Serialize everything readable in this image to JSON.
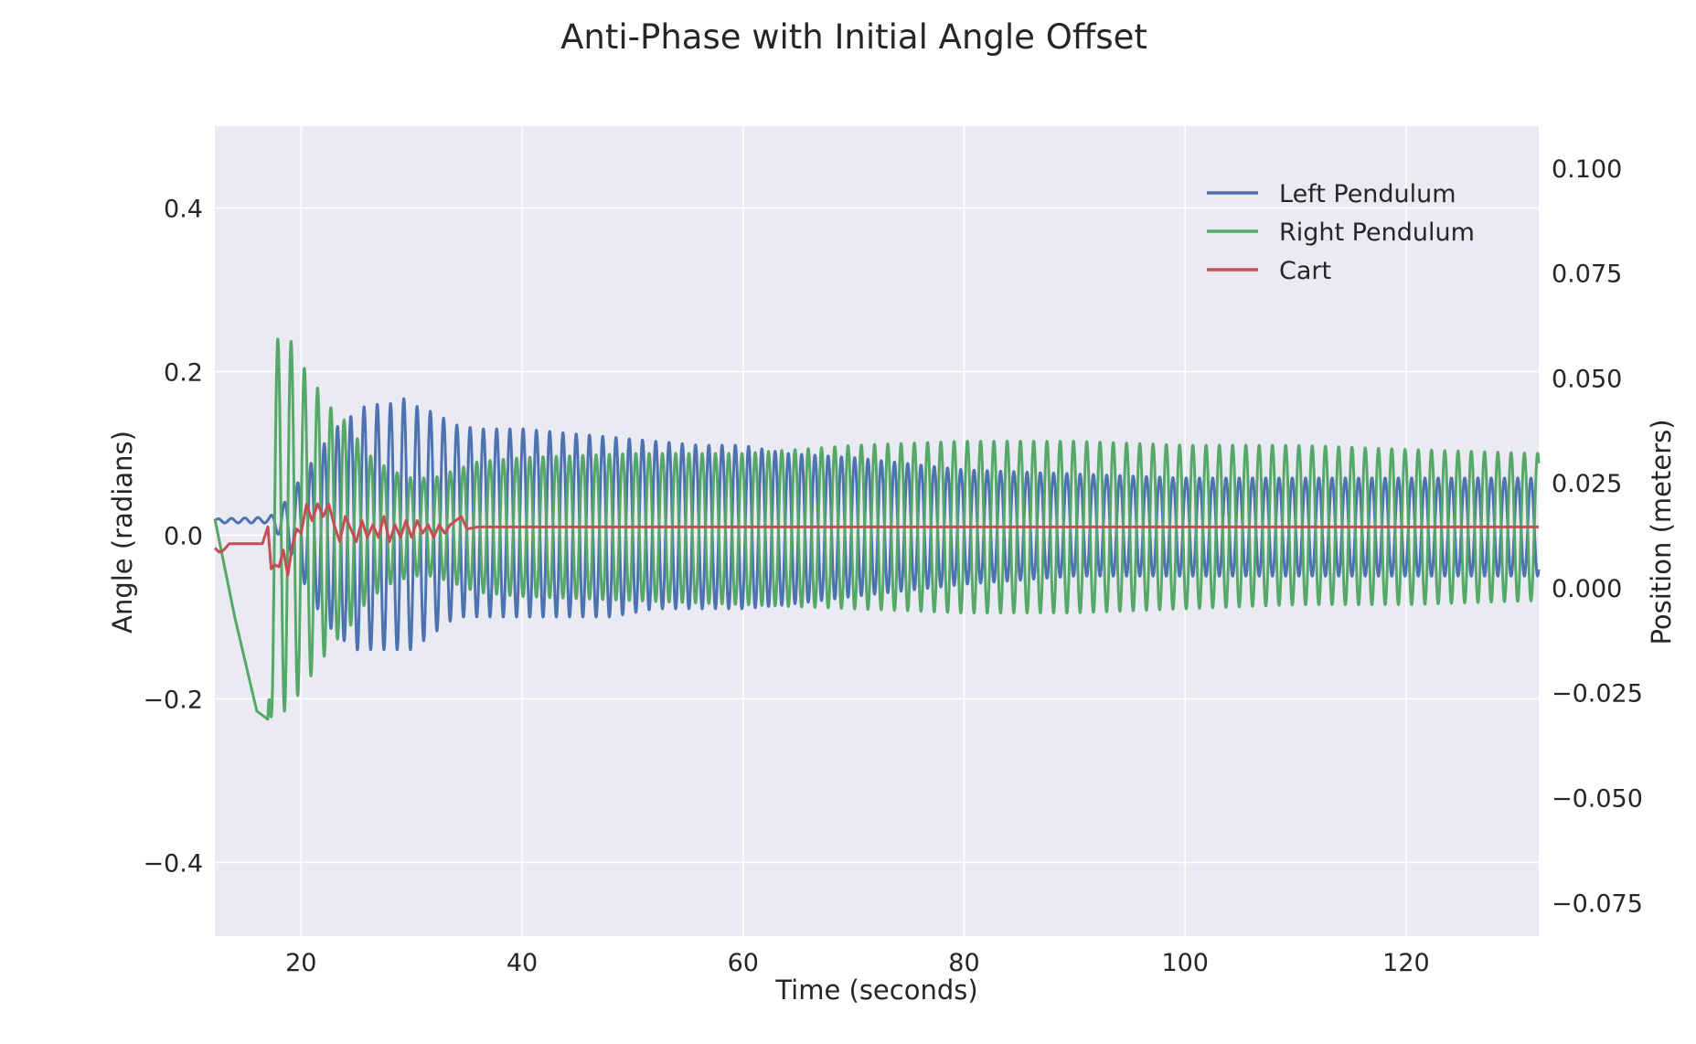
{
  "chart_data": {
    "type": "line",
    "title": "Anti-Phase with Initial Angle Offset",
    "xlabel": "Time (seconds)",
    "ylabel": "Angle (radians)",
    "y2label": "Position (meters)",
    "xlim": [
      12.2,
      132
    ],
    "ylim": [
      -0.49,
      0.5
    ],
    "y2lim": [
      -0.083,
      0.11
    ],
    "xticks": [
      20,
      40,
      60,
      80,
      100,
      120
    ],
    "yticks": [
      -0.4,
      -0.2,
      0.0,
      0.2,
      0.4
    ],
    "y2ticks": [
      -0.075,
      -0.05,
      -0.025,
      0.0,
      0.025,
      0.05,
      0.075,
      0.1
    ],
    "ytick_labels": [
      "−0.4",
      "−0.2",
      "0.0",
      "0.2",
      "0.4"
    ],
    "y2tick_labels": [
      "−0.075",
      "−0.050",
      "−0.025",
      "0.000",
      "0.025",
      "0.050",
      "0.075",
      "0.100"
    ],
    "grid": true,
    "background": "#eaeaf2",
    "legend_position": "top-right",
    "series": [
      {
        "name": "Left Pendulum",
        "axis": "left",
        "color": "#4c72b0",
        "period": 1.2,
        "phase": 0,
        "x": [
          12.2,
          17,
          18,
          19,
          20,
          21,
          22,
          23,
          24,
          25,
          26,
          28,
          29,
          30,
          32,
          34,
          36,
          38,
          40,
          44,
          48,
          52,
          56,
          60,
          64,
          70,
          80,
          90,
          100,
          110,
          120,
          132
        ],
        "upper": [
          0.02,
          0.022,
          0.03,
          0.05,
          0.07,
          0.09,
          0.11,
          0.13,
          0.14,
          0.15,
          0.16,
          0.16,
          0.17,
          0.16,
          0.15,
          0.135,
          0.13,
          0.13,
          0.13,
          0.125,
          0.12,
          0.115,
          0.11,
          0.11,
          0.1,
          0.095,
          0.08,
          0.075,
          0.07,
          0.07,
          0.07,
          0.07
        ],
        "lower": [
          0.015,
          0.015,
          0.0,
          -0.02,
          -0.05,
          -0.08,
          -0.1,
          -0.12,
          -0.13,
          -0.14,
          -0.14,
          -0.14,
          -0.14,
          -0.14,
          -0.12,
          -0.1,
          -0.1,
          -0.1,
          -0.1,
          -0.1,
          -0.1,
          -0.09,
          -0.09,
          -0.09,
          -0.085,
          -0.075,
          -0.06,
          -0.05,
          -0.05,
          -0.05,
          -0.05,
          -0.05
        ]
      },
      {
        "name": "Right Pendulum",
        "axis": "left",
        "color": "#55a868",
        "period": 1.2,
        "phase": 3.14159,
        "x": [
          12.2,
          14,
          16,
          17,
          17.5,
          18,
          19,
          20,
          21,
          22,
          23,
          24,
          25,
          26,
          28,
          30,
          32,
          34,
          36,
          40,
          50,
          60,
          70,
          80,
          90,
          100,
          110,
          120,
          132
        ],
        "upper": [
          0.02,
          -0.1,
          -0.215,
          -0.225,
          0.24,
          0.24,
          0.24,
          0.21,
          0.19,
          0.17,
          0.15,
          0.14,
          0.12,
          0.1,
          0.08,
          0.07,
          0.07,
          0.08,
          0.09,
          0.095,
          0.1,
          0.1,
          0.11,
          0.115,
          0.115,
          0.11,
          0.11,
          0.105,
          0.1
        ],
        "lower": [
          0.02,
          -0.1,
          -0.215,
          -0.225,
          -0.22,
          -0.22,
          -0.21,
          -0.19,
          -0.17,
          -0.15,
          -0.13,
          -0.12,
          -0.1,
          -0.08,
          -0.06,
          -0.05,
          -0.05,
          -0.06,
          -0.07,
          -0.075,
          -0.08,
          -0.085,
          -0.09,
          -0.095,
          -0.095,
          -0.09,
          -0.085,
          -0.085,
          -0.08
        ]
      },
      {
        "name": "Cart",
        "axis": "right",
        "color": "#c44e52",
        "x": [
          12.2,
          12.6,
          13,
          13.5,
          14,
          15,
          16,
          16.5,
          17,
          17.3,
          17.6,
          18,
          18.4,
          18.8,
          19.2,
          19.6,
          20,
          20.5,
          21,
          21.5,
          22,
          22.5,
          23,
          23.5,
          24,
          24.5,
          25,
          25.5,
          26,
          26.5,
          27,
          27.5,
          28,
          28.5,
          29,
          29.5,
          30,
          30.5,
          31,
          31.5,
          32,
          32.5,
          33,
          33.5,
          34,
          34.5,
          35,
          36,
          40,
          60,
          80,
          100,
          120,
          132
        ],
        "values": [
          0.0095,
          0.0085,
          0.009,
          0.0105,
          0.0105,
          0.0105,
          0.0105,
          0.0105,
          0.0145,
          0.0045,
          0.0055,
          0.005,
          0.009,
          0.003,
          0.01,
          0.014,
          0.013,
          0.02,
          0.016,
          0.02,
          0.017,
          0.02,
          0.015,
          0.011,
          0.017,
          0.014,
          0.011,
          0.016,
          0.012,
          0.015,
          0.012,
          0.017,
          0.011,
          0.015,
          0.012,
          0.016,
          0.012,
          0.016,
          0.013,
          0.015,
          0.012,
          0.015,
          0.013,
          0.015,
          0.016,
          0.017,
          0.014,
          0.0145,
          0.0145,
          0.0145,
          0.0145,
          0.0145,
          0.0145,
          0.0145
        ]
      }
    ]
  }
}
